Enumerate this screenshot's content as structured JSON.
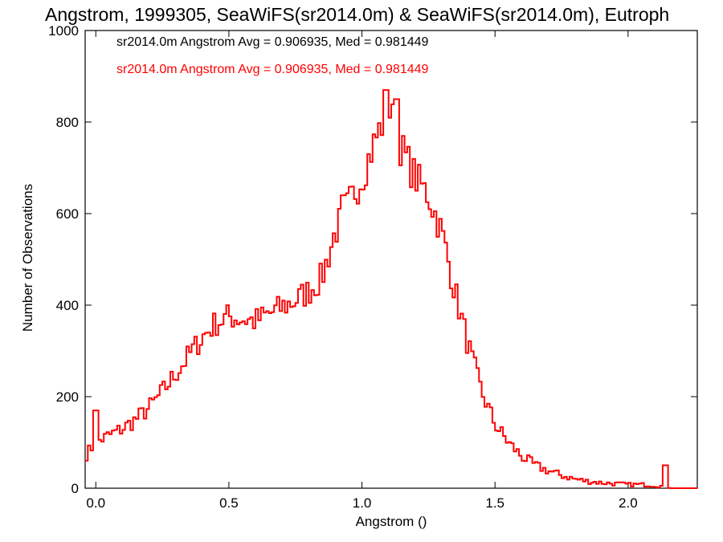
{
  "chart_data": {
    "type": "histogram-step",
    "title": "Angstrom, 1999305, SeaWiFS(sr2014.0m) & SeaWiFS(sr2014.0m), Eutroph",
    "xlabel": "Angstrom ()",
    "ylabel": "Number of Observations",
    "xlim": [
      -0.04,
      2.26
    ],
    "ylim": [
      0,
      1000
    ],
    "xticks": [
      0.0,
      0.5,
      1.0,
      1.5,
      2.0
    ],
    "xtick_labels": [
      "0.0",
      "0.5",
      "1.0",
      "1.5",
      "2.0"
    ],
    "yticks": [
      0,
      200,
      400,
      600,
      800,
      1000
    ],
    "ytick_labels": [
      "0",
      "200",
      "400",
      "600",
      "800",
      "1000"
    ],
    "annotations": [
      {
        "text": "sr2014.0m Angstrom Avg = 0.906935, Med = 0.981449",
        "color": "#000000"
      },
      {
        "text": "sr2014.0m Angstrom Avg = 0.906935, Med = 0.981449",
        "color": "#ff0000"
      }
    ],
    "series": [
      {
        "color": "#ff0000",
        "x": [
          -0.04,
          0.0,
          0.05,
          0.1,
          0.15,
          0.2,
          0.25,
          0.3,
          0.35,
          0.4,
          0.45,
          0.5,
          0.55,
          0.6,
          0.65,
          0.7,
          0.75,
          0.8,
          0.85,
          0.9,
          0.95,
          1.0,
          1.05,
          1.1,
          1.15,
          1.2,
          1.25,
          1.3,
          1.35,
          1.4,
          1.45,
          1.5,
          1.55,
          1.6,
          1.65,
          1.7,
          1.75,
          1.8,
          1.85,
          1.9,
          1.95,
          2.0,
          2.05,
          2.1,
          2.15,
          2.2,
          2.26
        ],
        "y": [
          70,
          100,
          115,
          130,
          150,
          175,
          210,
          250,
          290,
          330,
          360,
          375,
          370,
          365,
          380,
          395,
          410,
          430,
          460,
          560,
          620,
          680,
          760,
          830,
          740,
          680,
          640,
          560,
          430,
          310,
          210,
          140,
          100,
          70,
          50,
          38,
          28,
          20,
          15,
          12,
          10,
          8,
          8,
          6,
          3,
          0,
          0
        ],
        "spikes": [
          {
            "x": 0.0,
            "y": 170
          },
          {
            "x": 0.93,
            "y": 640
          },
          {
            "x": 1.09,
            "y": 870
          },
          {
            "x": 1.13,
            "y": 850
          },
          {
            "x": 2.14,
            "y": 50
          }
        ]
      }
    ]
  }
}
